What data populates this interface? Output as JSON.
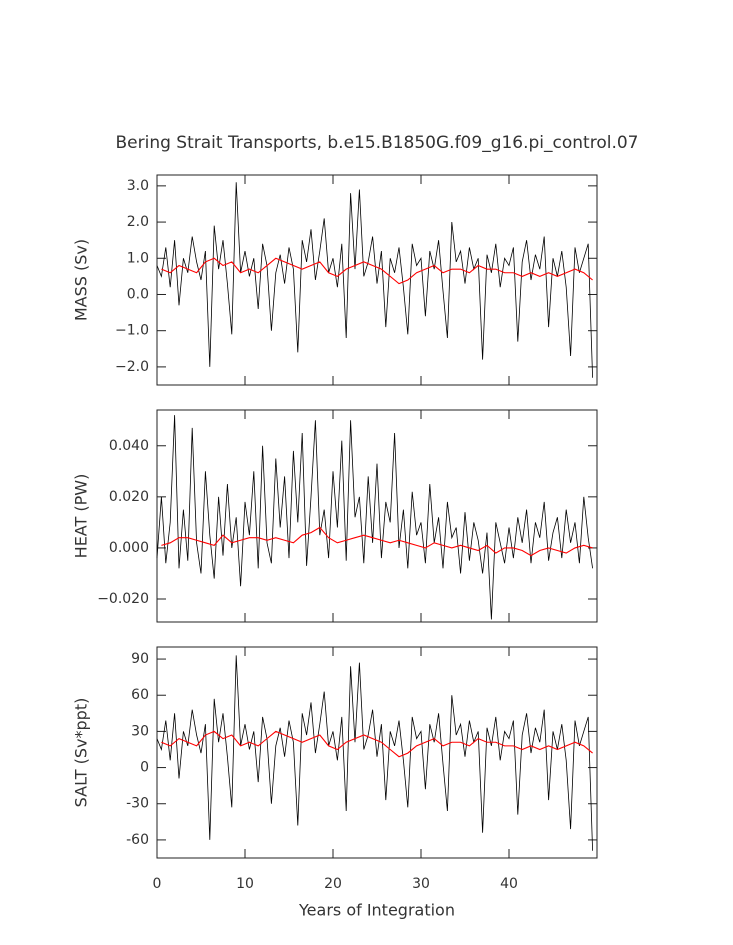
{
  "chart_data": [
    {
      "type": "line",
      "title": "Bering Strait Transports, b.e15.B1850G.f09_g16.pi_control.07",
      "ylabel": "MASS (Sv)",
      "x": [
        0,
        0.5,
        1,
        1.5,
        2,
        2.5,
        3,
        3.5,
        4,
        4.5,
        5,
        5.5,
        6,
        6.5,
        7,
        7.5,
        8,
        8.5,
        9,
        9.5,
        10,
        10.5,
        11,
        11.5,
        12,
        12.5,
        13,
        13.5,
        14,
        14.5,
        15,
        15.5,
        16,
        16.5,
        17,
        17.5,
        18,
        18.5,
        19,
        19.5,
        20,
        20.5,
        21,
        21.5,
        22,
        22.5,
        23,
        23.5,
        24,
        24.5,
        25,
        25.5,
        26,
        26.5,
        27,
        27.5,
        28,
        28.5,
        29,
        29.5,
        30,
        30.5,
        31,
        31.5,
        32,
        32.5,
        33,
        33.5,
        34,
        34.5,
        35,
        35.5,
        36,
        36.5,
        37,
        37.5,
        38,
        38.5,
        39,
        39.5,
        40,
        40.5,
        41,
        41.5,
        42,
        42.5,
        43,
        43.5,
        44,
        44.5,
        45,
        45.5,
        46,
        46.5,
        47,
        47.5,
        48,
        48.5,
        49,
        49.5
      ],
      "series": [
        {
          "color": "#000000",
          "values": [
            0.8,
            0.5,
            1.3,
            0.2,
            1.5,
            -0.3,
            1.0,
            0.6,
            1.6,
            0.9,
            0.4,
            1.2,
            -2.0,
            1.9,
            0.7,
            1.5,
            0.3,
            -1.1,
            3.1,
            0.6,
            1.2,
            0.5,
            1.0,
            -0.4,
            1.4,
            0.8,
            -1.0,
            0.6,
            1.1,
            0.3,
            1.3,
            0.7,
            -1.6,
            1.5,
            0.9,
            1.8,
            0.4,
            1.2,
            2.1,
            0.6,
            1.0,
            0.2,
            1.4,
            -1.2,
            2.8,
            0.7,
            2.9,
            0.5,
            0.9,
            1.6,
            0.3,
            1.2,
            -0.9,
            1.0,
            0.6,
            1.3,
            0.2,
            -1.1,
            1.4,
            0.8,
            1.0,
            -0.6,
            1.2,
            0.7,
            1.5,
            0.1,
            -1.2,
            2.0,
            0.9,
            1.2,
            0.3,
            1.3,
            0.7,
            1.0,
            -1.8,
            1.1,
            0.6,
            1.4,
            0.2,
            1.0,
            0.8,
            1.3,
            -1.3,
            0.9,
            1.5,
            0.4,
            1.1,
            0.7,
            1.6,
            -0.9,
            1.0,
            0.5,
            1.2,
            0.2,
            -1.7,
            1.3,
            0.6,
            1.0,
            1.4,
            -2.3
          ]
        },
        {
          "color": "#ff0000",
          "x": [
            0.5,
            1.5,
            2.5,
            3.5,
            4.5,
            5.5,
            6.5,
            7.5,
            8.5,
            9.5,
            10.5,
            11.5,
            12.5,
            13.5,
            14.5,
            15.5,
            16.5,
            17.5,
            18.5,
            19.5,
            20.5,
            21.5,
            22.5,
            23.5,
            24.5,
            25.5,
            26.5,
            27.5,
            28.5,
            29.5,
            30.5,
            31.5,
            32.5,
            33.5,
            34.5,
            35.5,
            36.5,
            37.5,
            38.5,
            39.5,
            40.5,
            41.5,
            42.5,
            43.5,
            44.5,
            45.5,
            46.5,
            47.5,
            48.5,
            49.5
          ],
          "values": [
            0.7,
            0.6,
            0.8,
            0.7,
            0.6,
            0.9,
            1.0,
            0.8,
            0.9,
            0.6,
            0.7,
            0.6,
            0.8,
            1.0,
            0.9,
            0.8,
            0.7,
            0.8,
            0.9,
            0.6,
            0.5,
            0.7,
            0.8,
            0.9,
            0.8,
            0.7,
            0.5,
            0.3,
            0.4,
            0.6,
            0.7,
            0.8,
            0.6,
            0.7,
            0.7,
            0.6,
            0.8,
            0.7,
            0.7,
            0.6,
            0.6,
            0.5,
            0.6,
            0.5,
            0.6,
            0.5,
            0.6,
            0.7,
            0.6,
            0.4
          ]
        }
      ],
      "ylim": [
        -2.5,
        3.3
      ],
      "yticks": [
        {
          "value": -2,
          "label": "−2.0"
        },
        {
          "value": -1,
          "label": "−1.0"
        },
        {
          "value": 0,
          "label": "0.0"
        },
        {
          "value": 1,
          "label": "1.0"
        },
        {
          "value": 2,
          "label": "2.0"
        },
        {
          "value": 3,
          "label": "3.0"
        }
      ]
    },
    {
      "type": "line",
      "ylabel": "HEAT (PW)",
      "x": [
        0,
        0.5,
        1,
        1.5,
        2,
        2.5,
        3,
        3.5,
        4,
        4.5,
        5,
        5.5,
        6,
        6.5,
        7,
        7.5,
        8,
        8.5,
        9,
        9.5,
        10,
        10.5,
        11,
        11.5,
        12,
        12.5,
        13,
        13.5,
        14,
        14.5,
        15,
        15.5,
        16,
        16.5,
        17,
        17.5,
        18,
        18.5,
        19,
        19.5,
        20,
        20.5,
        21,
        21.5,
        22,
        22.5,
        23,
        23.5,
        24,
        24.5,
        25,
        25.5,
        26,
        26.5,
        27,
        27.5,
        28,
        28.5,
        29,
        29.5,
        30,
        30.5,
        31,
        31.5,
        32,
        32.5,
        33,
        33.5,
        34,
        34.5,
        35,
        35.5,
        36,
        36.5,
        37,
        37.5,
        38,
        38.5,
        39,
        39.5,
        40,
        40.5,
        41,
        41.5,
        42,
        42.5,
        43,
        43.5,
        44,
        44.5,
        45,
        45.5,
        46,
        46.5,
        47,
        47.5,
        48,
        48.5,
        49,
        49.5
      ],
      "series": [
        {
          "color": "#000000",
          "values": [
            -0.004,
            0.02,
            -0.006,
            0.01,
            0.052,
            -0.008,
            0.015,
            -0.005,
            0.047,
            0.002,
            -0.01,
            0.03,
            0.005,
            -0.012,
            0.02,
            -0.003,
            0.025,
            0,
            0.012,
            -0.015,
            0.018,
            0.005,
            0.03,
            -0.008,
            0.04,
            0.002,
            -0.006,
            0.035,
            0.008,
            0.028,
            -0.004,
            0.038,
            0.01,
            0.045,
            -0.007,
            0.02,
            0.05,
            0.005,
            0.015,
            -0.004,
            0.03,
            0.008,
            0.042,
            -0.005,
            0.05,
            0.012,
            0.02,
            -0.006,
            0.028,
            0.002,
            0.033,
            -0.004,
            0.018,
            0.01,
            0.045,
            0,
            0.015,
            -0.008,
            0.022,
            0.005,
            0.01,
            -0.006,
            0.025,
            0.002,
            0.012,
            -0.008,
            0.018,
            0.004,
            0.008,
            -0.01,
            0.014,
            -0.005,
            0.01,
            0.003,
            -0.01,
            0.006,
            -0.028,
            0.01,
            0.002,
            -0.006,
            0.008,
            -0.004,
            0.012,
            0.002,
            0.015,
            -0.006,
            0.01,
            0.004,
            0.018,
            -0.005,
            0.006,
            0.012,
            -0.004,
            0.015,
            0.002,
            0.01,
            -0.006,
            0.02,
            0.004,
            -0.008
          ]
        },
        {
          "color": "#ff0000",
          "x": [
            0.5,
            1.5,
            2.5,
            3.5,
            4.5,
            5.5,
            6.5,
            7.5,
            8.5,
            9.5,
            10.5,
            11.5,
            12.5,
            13.5,
            14.5,
            15.5,
            16.5,
            17.5,
            18.5,
            19.5,
            20.5,
            21.5,
            22.5,
            23.5,
            24.5,
            25.5,
            26.5,
            27.5,
            28.5,
            29.5,
            30.5,
            31.5,
            32.5,
            33.5,
            34.5,
            35.5,
            36.5,
            37.5,
            38.5,
            39.5,
            40.5,
            41.5,
            42.5,
            43.5,
            44.5,
            45.5,
            46.5,
            47.5,
            48.5,
            49.5
          ],
          "values": [
            0.001,
            0.002,
            0.004,
            0.004,
            0.003,
            0.002,
            0.001,
            0.005,
            0.002,
            0.003,
            0.004,
            0.004,
            0.003,
            0.004,
            0.003,
            0.002,
            0.005,
            0.006,
            0.008,
            0.004,
            0.002,
            0.003,
            0.004,
            0.005,
            0.004,
            0.003,
            0.002,
            0.003,
            0.002,
            0.001,
            0,
            0.002,
            0.001,
            0,
            0.001,
            0,
            -0.001,
            0.001,
            -0.002,
            0,
            0,
            -0.001,
            -0.003,
            -0.001,
            0,
            -0.001,
            -0.002,
            0,
            0.001,
            0
          ]
        }
      ],
      "ylim": [
        -0.029,
        0.054
      ],
      "yticks": [
        {
          "value": -0.02,
          "label": "−0.020"
        },
        {
          "value": 0,
          "label": "0.000"
        },
        {
          "value": 0.02,
          "label": "0.020"
        },
        {
          "value": 0.04,
          "label": "0.040"
        }
      ]
    },
    {
      "type": "line",
      "ylabel": "SALT (Sv*ppt)",
      "xlabel": "Years of Integration",
      "x": [
        0,
        0.5,
        1,
        1.5,
        2,
        2.5,
        3,
        3.5,
        4,
        4.5,
        5,
        5.5,
        6,
        6.5,
        7,
        7.5,
        8,
        8.5,
        9,
        9.5,
        10,
        10.5,
        11,
        11.5,
        12,
        12.5,
        13,
        13.5,
        14,
        14.5,
        15,
        15.5,
        16,
        16.5,
        17,
        17.5,
        18,
        18.5,
        19,
        19.5,
        20,
        20.5,
        21,
        21.5,
        22,
        22.5,
        23,
        23.5,
        24,
        24.5,
        25,
        25.5,
        26,
        26.5,
        27,
        27.5,
        28,
        28.5,
        29,
        29.5,
        30,
        30.5,
        31,
        31.5,
        32,
        32.5,
        33,
        33.5,
        34,
        34.5,
        35,
        35.5,
        36,
        36.5,
        37,
        37.5,
        38,
        38.5,
        39,
        39.5,
        40,
        40.5,
        41,
        41.5,
        42,
        42.5,
        43,
        43.5,
        44,
        44.5,
        45,
        45.5,
        46,
        46.5,
        47,
        47.5,
        48,
        48.5,
        49,
        49.5
      ],
      "series": [
        {
          "color": "#000000",
          "values": [
            24,
            15,
            39,
            6,
            45,
            -9,
            30,
            18,
            48,
            27,
            12,
            36,
            -60,
            57,
            21,
            45,
            9,
            -33,
            93,
            18,
            36,
            15,
            30,
            -12,
            42,
            24,
            -30,
            18,
            33,
            9,
            39,
            21,
            -48,
            45,
            27,
            54,
            12,
            36,
            63,
            18,
            30,
            6,
            42,
            -36,
            84,
            21,
            87,
            15,
            27,
            48,
            9,
            36,
            -27,
            30,
            18,
            39,
            6,
            -33,
            42,
            24,
            30,
            -18,
            36,
            21,
            45,
            3,
            -36,
            60,
            27,
            36,
            9,
            39,
            21,
            30,
            -54,
            33,
            18,
            42,
            6,
            30,
            24,
            39,
            -39,
            27,
            45,
            12,
            33,
            21,
            48,
            -27,
            30,
            15,
            36,
            6,
            -51,
            39,
            18,
            30,
            42,
            -69
          ]
        },
        {
          "color": "#ff0000",
          "x": [
            0.5,
            1.5,
            2.5,
            3.5,
            4.5,
            5.5,
            6.5,
            7.5,
            8.5,
            9.5,
            10.5,
            11.5,
            12.5,
            13.5,
            14.5,
            15.5,
            16.5,
            17.5,
            18.5,
            19.5,
            20.5,
            21.5,
            22.5,
            23.5,
            24.5,
            25.5,
            26.5,
            27.5,
            28.5,
            29.5,
            30.5,
            31.5,
            32.5,
            33.5,
            34.5,
            35.5,
            36.5,
            37.5,
            38.5,
            39.5,
            40.5,
            41.5,
            42.5,
            43.5,
            44.5,
            45.5,
            46.5,
            47.5,
            48.5,
            49.5
          ],
          "values": [
            21,
            18,
            24,
            21,
            18,
            27,
            30,
            24,
            27,
            18,
            21,
            18,
            24,
            30,
            27,
            24,
            21,
            24,
            27,
            18,
            15,
            21,
            24,
            27,
            24,
            21,
            15,
            9,
            12,
            18,
            21,
            24,
            18,
            21,
            21,
            18,
            24,
            21,
            21,
            18,
            18,
            15,
            18,
            15,
            18,
            15,
            18,
            21,
            18,
            12
          ]
        }
      ],
      "ylim": [
        -75,
        100
      ],
      "yticks": [
        -60,
        -30,
        0,
        30,
        60,
        90
      ],
      "xlim": [
        0,
        50
      ],
      "xticks": [
        0,
        10,
        20,
        30,
        40
      ]
    }
  ]
}
